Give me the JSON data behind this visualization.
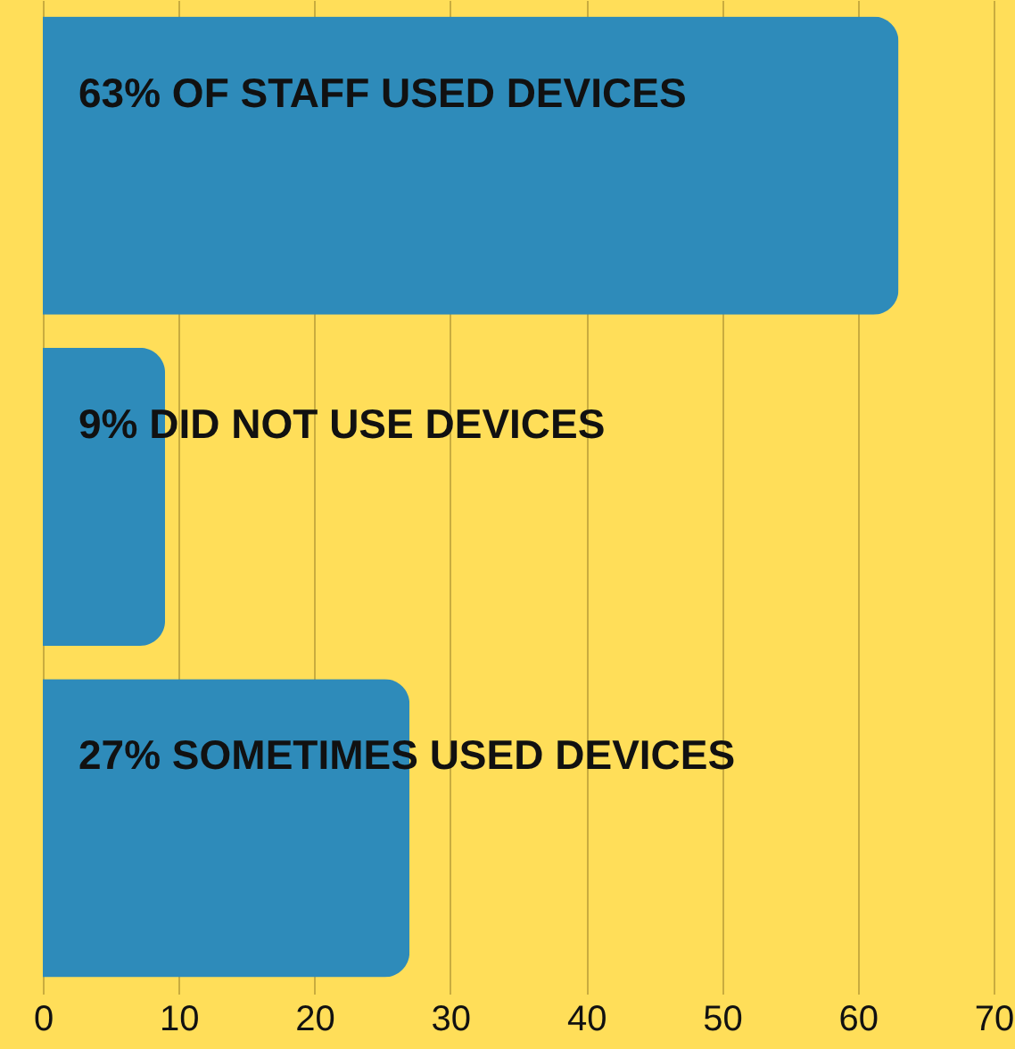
{
  "chart_data": {
    "type": "bar",
    "orientation": "horizontal",
    "categories": [
      "63% OF STAFF USED DEVICES",
      "9% DID NOT USE DEVICES",
      "27% SOMETIMES USED DEVICES"
    ],
    "values": [
      63,
      9,
      27
    ],
    "color": "#2e8bba",
    "xlim": [
      0,
      70
    ],
    "xticks": [
      0,
      10,
      20,
      30,
      40,
      50,
      60,
      70
    ],
    "grid": "x",
    "tick_labels": "x"
  }
}
